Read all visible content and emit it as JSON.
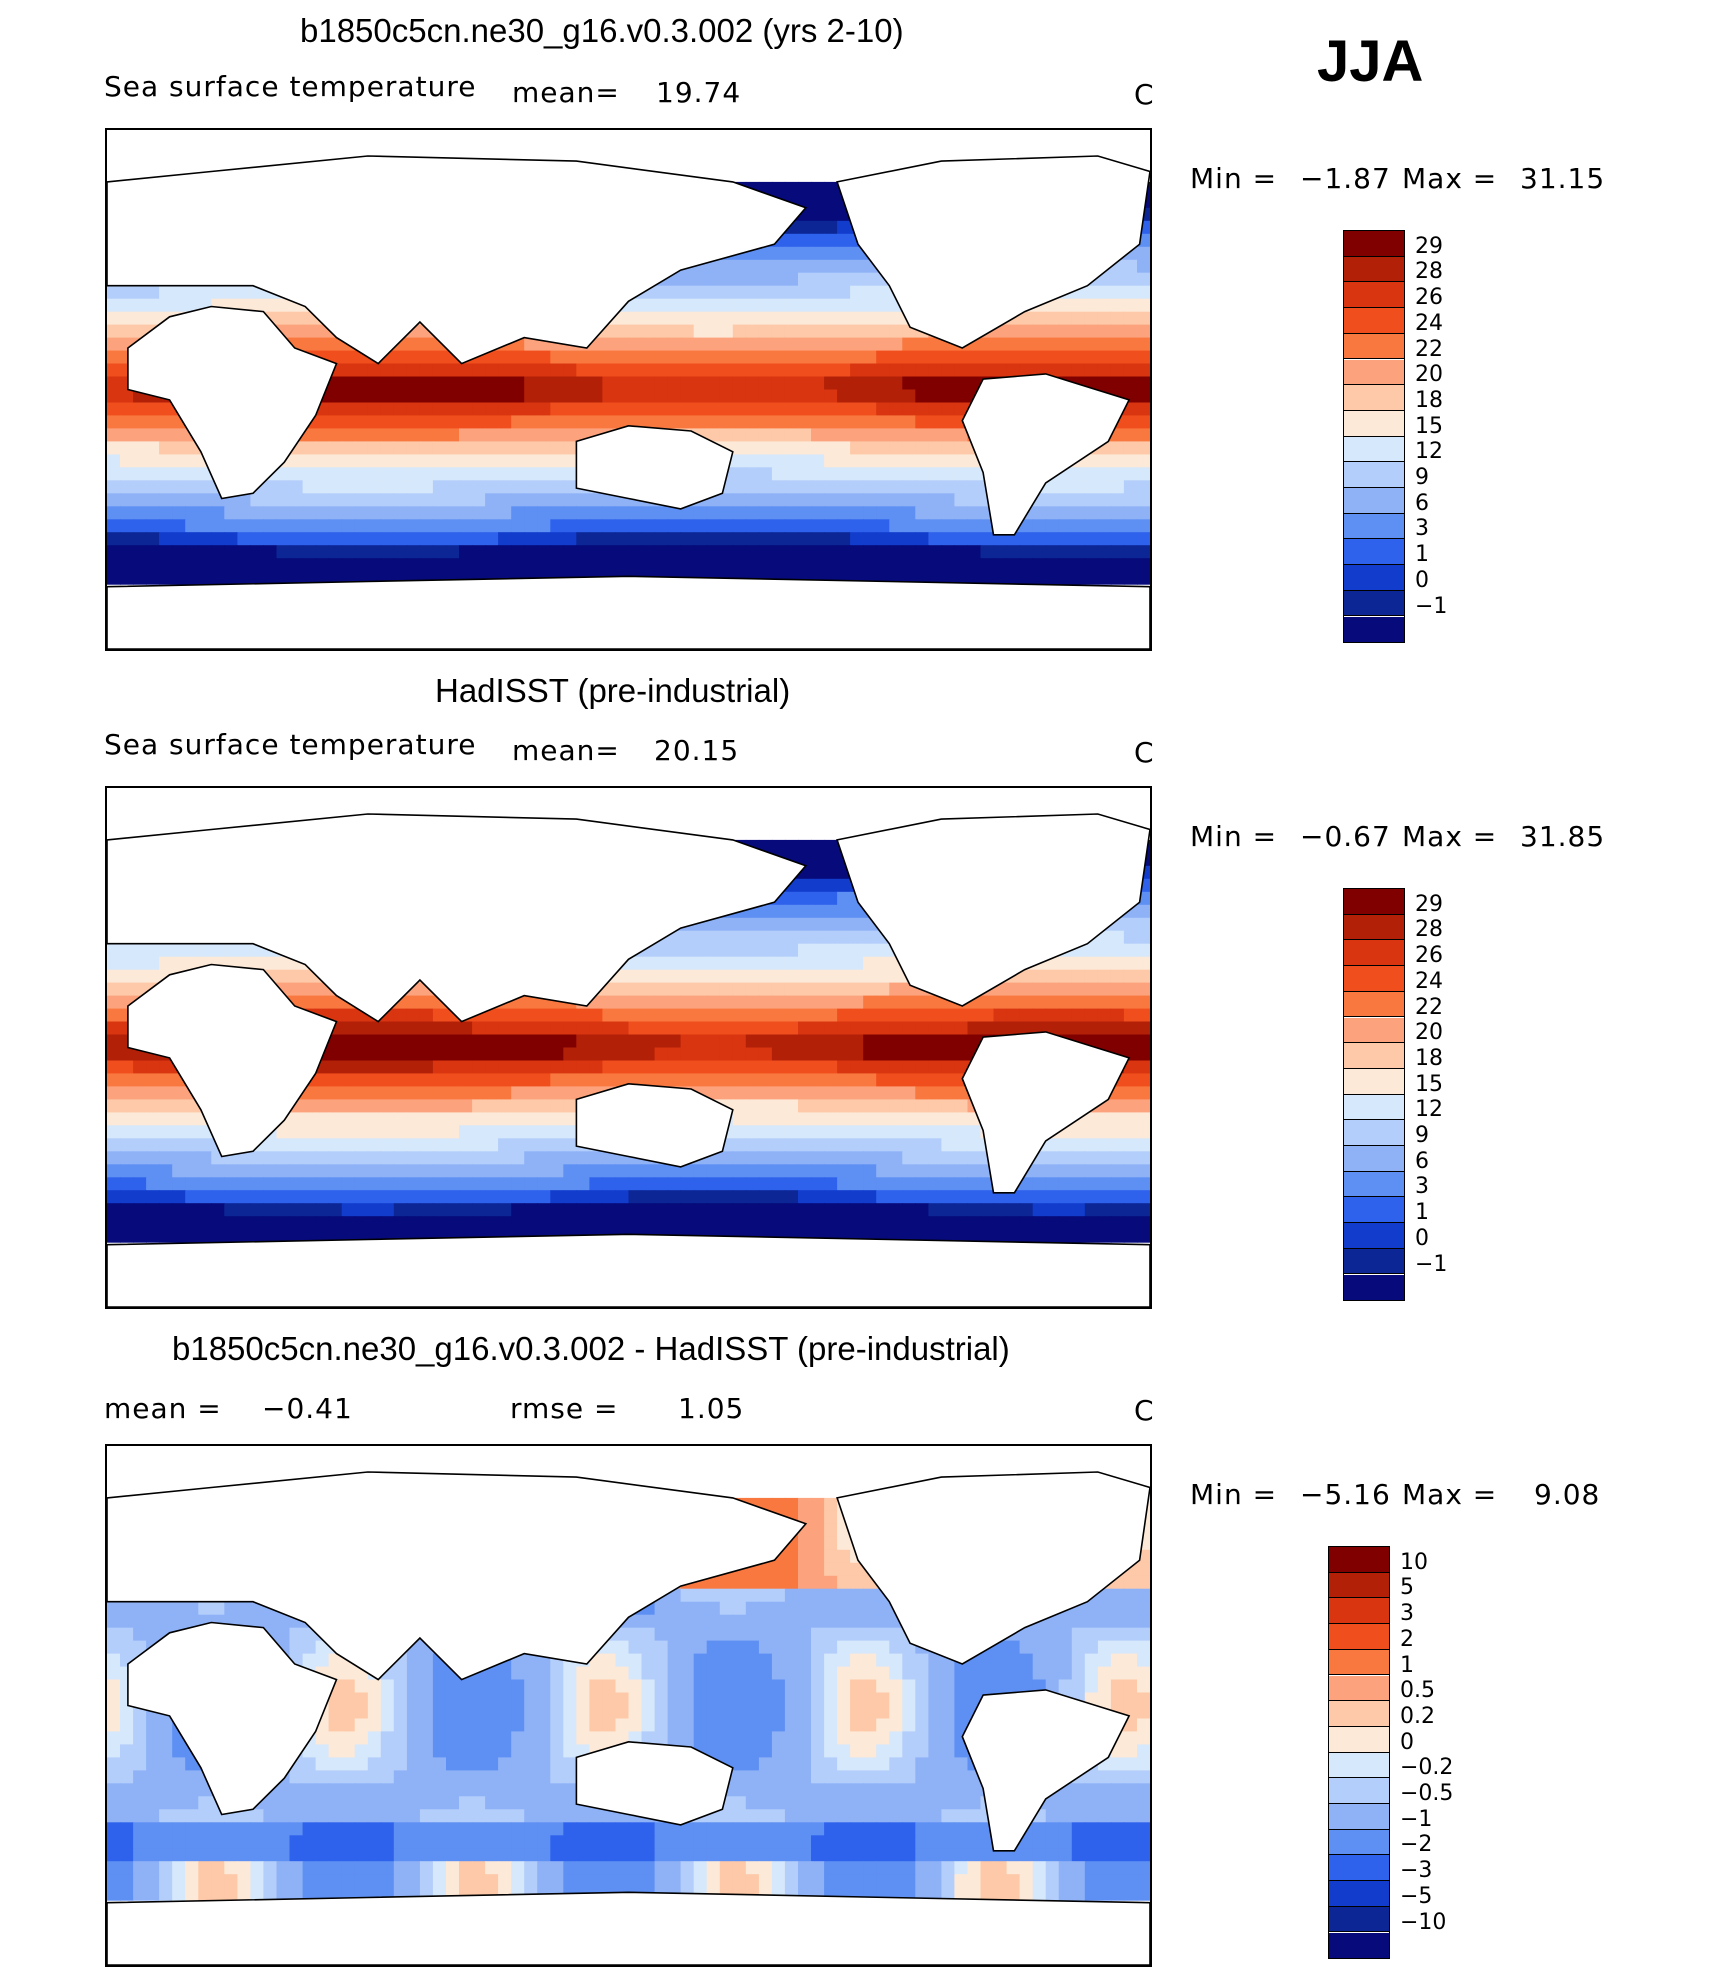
{
  "season": "JJA",
  "panels": [
    {
      "title": "b1850c5cn.ne30_g16.v0.3.002 (yrs 2-10)",
      "left_label": "Sea surface temperature",
      "mean_label": "mean=",
      "mean_value": "19.74",
      "units": "C",
      "min_label": "Min  =",
      "min_value": "−1.87",
      "max_label": "Max  =",
      "max_value": "31.15",
      "colorbar_levels": [
        "29",
        "28",
        "26",
        "24",
        "22",
        "20",
        "18",
        "15",
        "12",
        "9",
        "6",
        "3",
        "1",
        "0",
        "−1"
      ],
      "colors": [
        "#800000",
        "#b22008",
        "#d93510",
        "#f04e1c",
        "#f9783f",
        "#fca27c",
        "#fdc9a8",
        "#fde9d8",
        "#d6e8fb",
        "#b3cefa",
        "#8fb2f7",
        "#5e8ff2",
        "#2f62ec",
        "#123ccc",
        "#0c2696",
        "#060a7a"
      ]
    },
    {
      "title": "HadISST (pre-industrial)",
      "left_label": "Sea surface temperature",
      "mean_label": "mean=",
      "mean_value": "20.15",
      "units": "C",
      "min_label": "Min  =",
      "min_value": "−0.67",
      "max_label": "Max  =",
      "max_value": "31.85",
      "colorbar_levels": [
        "29",
        "28",
        "26",
        "24",
        "22",
        "20",
        "18",
        "15",
        "12",
        "9",
        "6",
        "3",
        "1",
        "0",
        "−1"
      ],
      "colors": [
        "#800000",
        "#b22008",
        "#d93510",
        "#f04e1c",
        "#f9783f",
        "#fca27c",
        "#fdc9a8",
        "#fde9d8",
        "#d6e8fb",
        "#b3cefa",
        "#8fb2f7",
        "#5e8ff2",
        "#2f62ec",
        "#123ccc",
        "#0c2696",
        "#060a7a"
      ]
    },
    {
      "title": "b1850c5cn.ne30_g16.v0.3.002 - HadISST (pre-industrial)",
      "left_label": "mean  =",
      "mean_label": "",
      "mean_value": "−0.41",
      "rmse_label": "rmse  =",
      "rmse_value": "1.05",
      "units": "C",
      "min_label": "Min  =",
      "min_value": "−5.16",
      "max_label": "Max  =",
      "max_value": "9.08",
      "colorbar_levels": [
        "10",
        "5",
        "3",
        "2",
        "1",
        "0.5",
        "0.2",
        "0",
        "−0.2",
        "−0.5",
        "−1",
        "−2",
        "−3",
        "−5",
        "−10"
      ],
      "colors": [
        "#800000",
        "#b22008",
        "#d93510",
        "#f04e1c",
        "#f9783f",
        "#fca27c",
        "#fdc9a8",
        "#fde9d8",
        "#d6e8fb",
        "#b3cefa",
        "#8fb2f7",
        "#5e8ff2",
        "#2f62ec",
        "#123ccc",
        "#0c2696",
        "#060a7a"
      ]
    }
  ],
  "chart_data": [
    {
      "type": "heatmap",
      "title": "b1850c5cn.ne30_g16.v0.3.002 (yrs 2-10)",
      "field": "Sea surface temperature",
      "season": "JJA",
      "mean": 19.74,
      "units": "C",
      "min": -1.87,
      "max": 31.15,
      "contour_levels": [
        -1,
        0,
        1,
        3,
        6,
        9,
        12,
        15,
        18,
        20,
        22,
        24,
        26,
        28,
        29
      ]
    },
    {
      "type": "heatmap",
      "title": "HadISST (pre-industrial)",
      "field": "Sea surface temperature",
      "season": "JJA",
      "mean": 20.15,
      "units": "C",
      "min": -0.67,
      "max": 31.85,
      "contour_levels": [
        -1,
        0,
        1,
        3,
        6,
        9,
        12,
        15,
        18,
        20,
        22,
        24,
        26,
        28,
        29
      ]
    },
    {
      "type": "heatmap",
      "title": "b1850c5cn.ne30_g16.v0.3.002 - HadISST (pre-industrial)",
      "season": "JJA",
      "mean": -0.41,
      "rmse": 1.05,
      "units": "C",
      "min": -5.16,
      "max": 9.08,
      "contour_levels": [
        -10,
        -5,
        -3,
        -2,
        -1,
        -0.5,
        -0.2,
        0,
        0.2,
        0.5,
        1,
        2,
        3,
        5,
        10
      ]
    }
  ]
}
